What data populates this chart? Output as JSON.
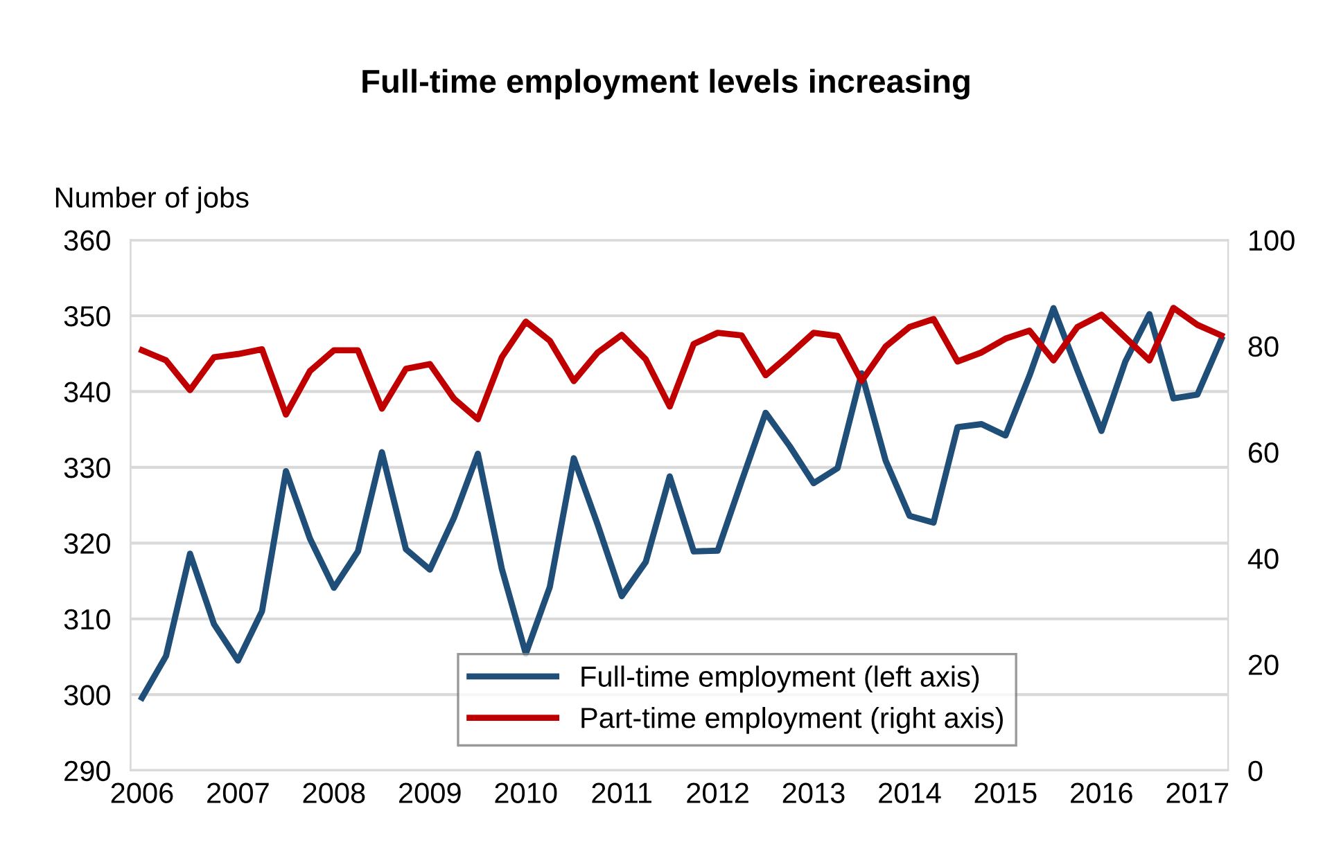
{
  "chart_data": {
    "type": "line",
    "title": "Full-time employment levels increasing",
    "ylabel": "Number of jobs",
    "x": [
      2006.0,
      2006.25,
      2006.5,
      2006.75,
      2007.0,
      2007.25,
      2007.5,
      2007.75,
      2008.0,
      2008.25,
      2008.5,
      2008.75,
      2009.0,
      2009.25,
      2009.5,
      2009.75,
      2010.0,
      2010.25,
      2010.5,
      2010.75,
      2011.0,
      2011.25,
      2011.5,
      2011.75,
      2012.0,
      2012.25,
      2012.5,
      2012.75,
      2013.0,
      2013.25,
      2013.5,
      2013.75,
      2014.0,
      2014.25,
      2014.5,
      2014.75,
      2015.0,
      2015.25,
      2015.5,
      2015.75,
      2016.0,
      2016.25,
      2016.5,
      2016.75,
      2017.0,
      2017.25
    ],
    "series": [
      {
        "name": "Full-time employment (left axis)",
        "color": "#1f4e79",
        "values": [
          299.6,
          305.1,
          318.6,
          309.3,
          304.5,
          311.0,
          329.5,
          320.6,
          314.1,
          318.9,
          332.0,
          319.2,
          316.5,
          323.3,
          331.8,
          316.6,
          305.4,
          314.2,
          331.2,
          322.4,
          313.0,
          317.5,
          328.8,
          318.9,
          319.0,
          328.2,
          337.2,
          332.8,
          327.9,
          329.9,
          342.4,
          330.9,
          323.6,
          322.7,
          335.3,
          335.7,
          334.2,
          342.1,
          351.0,
          342.8,
          334.8,
          344.0,
          350.2,
          339.1,
          339.6,
          346.9
        ]
      },
      {
        "name": "Part-time employment (right axis)",
        "color": "#c00000",
        "axis": "y2",
        "values": [
          79.2,
          77.3,
          71.7,
          77.9,
          78.5,
          79.4,
          67.1,
          75.3,
          79.2,
          79.2,
          68.2,
          75.7,
          76.6,
          70.1,
          66.2,
          77.9,
          84.6,
          81.0,
          73.4,
          78.8,
          82.1,
          77.5,
          68.6,
          80.4,
          82.5,
          82.0,
          74.5,
          78.4,
          82.5,
          81.9,
          73.4,
          79.9,
          83.6,
          85.1,
          77.1,
          78.8,
          81.4,
          82.9,
          77.3,
          83.6,
          85.9,
          81.6,
          77.3,
          87.2,
          84.0,
          82.0
        ]
      }
    ],
    "xlim": [
      2005.88,
      2017.32
    ],
    "xticks": [
      2006,
      2007,
      2008,
      2009,
      2010,
      2011,
      2012,
      2013,
      2014,
      2015,
      2016,
      2017
    ],
    "ylim": [
      290,
      360
    ],
    "yticks": [
      290,
      300,
      310,
      320,
      330,
      340,
      350,
      360
    ],
    "y2lim": [
      0,
      100
    ],
    "y2ticks": [
      0,
      20,
      40,
      60,
      80,
      100
    ],
    "grid": "y",
    "legend": "bottom right",
    "marker": "none",
    "line_style": "solid"
  }
}
